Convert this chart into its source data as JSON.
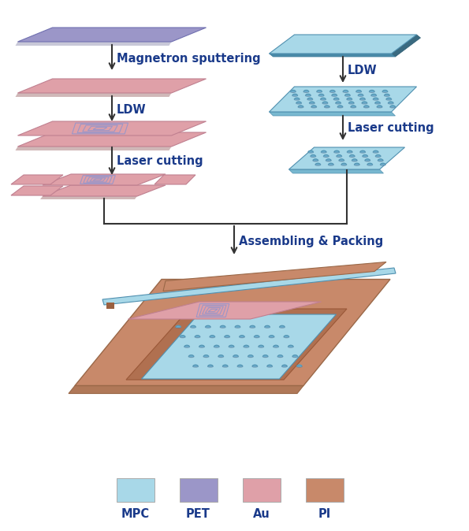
{
  "colors": {
    "MPC": "#a8d8e8",
    "MPC_side": "#78b8d0",
    "MPC_dark": "#5090b0",
    "PET": "#9b96c8",
    "PET_edge": "#7070b0",
    "Au": "#dfa0a8",
    "Au_edge": "#c08090",
    "Au_side": "#c09090",
    "PI": "#c8896a",
    "PI_edge": "#9a6848",
    "PI_side": "#b07858",
    "PI_dark": "#9a6040",
    "shadow": "#d0d0d0",
    "arrow": "#333333",
    "text": "#1a3a8a",
    "bg": "#ffffff"
  },
  "labels": {
    "magnetron": "Magnetron sputtering",
    "ldw_left": "LDW",
    "laser_left": "Laser cutting",
    "ldw_right": "LDW",
    "laser_right": "Laser cutting",
    "assemble": "Assembling & Packing",
    "MPC": "MPC",
    "PET": "PET",
    "Au": "Au",
    "PI": "PI"
  },
  "fontsize": 10.5
}
